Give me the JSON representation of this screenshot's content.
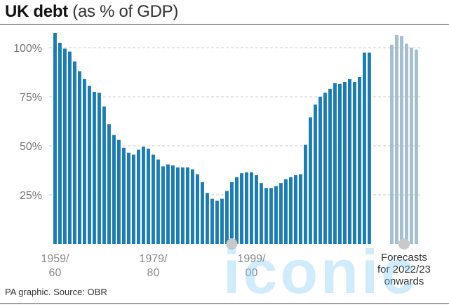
{
  "header": {
    "title_bold": "UK debt",
    "title_light": "(as % of GDP)"
  },
  "footer": {
    "source": "PA graphic. Source: OBR"
  },
  "watermark": {
    "text": "iconic"
  },
  "colors": {
    "actual_bar": "#1a7db6",
    "forecast_bar": "#a4bfcd",
    "gridline": "#cccccc",
    "marker": "#c9c9c9"
  },
  "chart_data": {
    "type": "bar",
    "ylim": [
      0,
      112
    ],
    "yticks": [
      25,
      50,
      75,
      100
    ],
    "ytick_labels": [
      "25%",
      "50%",
      "75%",
      "100%"
    ],
    "grid": true,
    "x_tick_labels": [
      {
        "index": 0,
        "lines": [
          "1959/",
          "60"
        ]
      },
      {
        "index": 20,
        "lines": [
          "1979/",
          "80"
        ]
      },
      {
        "index": 40,
        "lines": [
          "1999/",
          "00"
        ]
      }
    ],
    "forecast_note": [
      "Forecasts",
      "for 2022/23",
      "onwards"
    ],
    "series": [
      {
        "kind": "actual",
        "start_year": "1959/60",
        "values": [
          107.5,
          102.5,
          99.5,
          98,
          93,
          88,
          84,
          80.5,
          77.5,
          77,
          70,
          61,
          55.5,
          53,
          49,
          46.5,
          45.5,
          48,
          49.5,
          48.5,
          45.5,
          43,
          39.5,
          40.5,
          40,
          39,
          39,
          39,
          38,
          35.5,
          31.5,
          26,
          23,
          22,
          23,
          27,
          31.5,
          34,
          36,
          36.5,
          36.5,
          35,
          31,
          28.5,
          28.5,
          29.5,
          31,
          33,
          34,
          35,
          35.5,
          50.5,
          64.5,
          71,
          75,
          77,
          79,
          82,
          81.5,
          82.5,
          84,
          82.5,
          85,
          97.5,
          97.5
        ]
      },
      {
        "kind": "forecast",
        "start_year": "2022/23",
        "values": [
          101.5,
          106.5,
          106,
          102,
          100,
          99
        ]
      }
    ]
  }
}
